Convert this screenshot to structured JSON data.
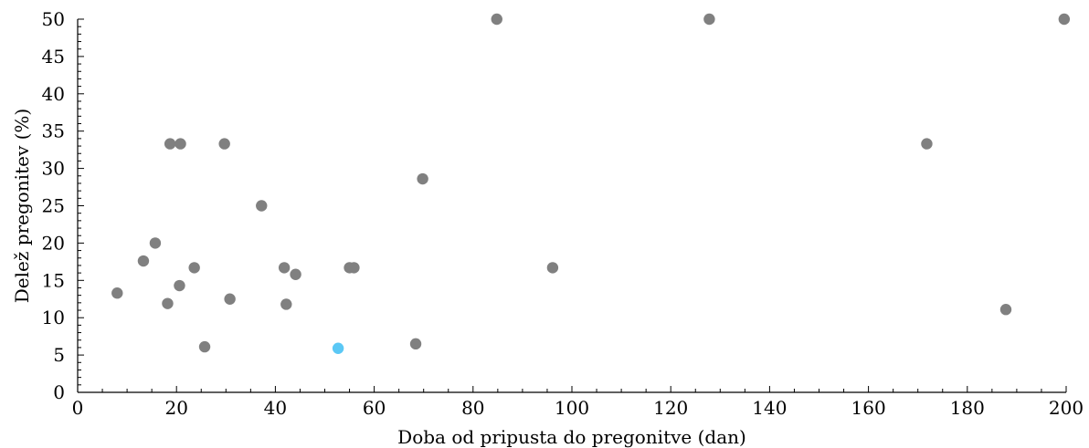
{
  "chart_data": {
    "type": "scatter",
    "xlabel": "Doba od pripusta do pregonitve (dan)",
    "ylabel": "Delež pregonitev (%)",
    "xlim": [
      0,
      200
    ],
    "ylim": [
      0,
      50
    ],
    "x_ticks": [
      0,
      20,
      40,
      60,
      80,
      100,
      120,
      140,
      160,
      180,
      200
    ],
    "y_ticks": [
      0,
      5,
      10,
      15,
      20,
      25,
      30,
      35,
      40,
      45,
      50
    ],
    "x_minor_step": 5,
    "y_minor_step": 1,
    "grid": false,
    "legend": "none",
    "colors": {
      "default_point": "#808080",
      "highlight_point": "#5bc8f5"
    },
    "points": [
      {
        "x": 8,
        "y": 13.3
      },
      {
        "x": 13.3,
        "y": 17.6
      },
      {
        "x": 15.7,
        "y": 20.0
      },
      {
        "x": 18.2,
        "y": 11.9
      },
      {
        "x": 18.7,
        "y": 33.3
      },
      {
        "x": 20.6,
        "y": 14.3
      },
      {
        "x": 20.8,
        "y": 33.3
      },
      {
        "x": 23.6,
        "y": 16.7
      },
      {
        "x": 25.7,
        "y": 6.1
      },
      {
        "x": 29.7,
        "y": 33.3
      },
      {
        "x": 30.8,
        "y": 12.5
      },
      {
        "x": 37.2,
        "y": 25.0
      },
      {
        "x": 41.8,
        "y": 16.7
      },
      {
        "x": 42.2,
        "y": 11.8
      },
      {
        "x": 44.1,
        "y": 15.8
      },
      {
        "x": 52.7,
        "y": 5.9,
        "highlight": true
      },
      {
        "x": 55.0,
        "y": 16.7
      },
      {
        "x": 55.9,
        "y": 16.7
      },
      {
        "x": 68.4,
        "y": 6.5
      },
      {
        "x": 69.8,
        "y": 28.6
      },
      {
        "x": 84.8,
        "y": 50.0
      },
      {
        "x": 96.1,
        "y": 16.7
      },
      {
        "x": 127.8,
        "y": 50.0
      },
      {
        "x": 171.8,
        "y": 33.3
      },
      {
        "x": 187.8,
        "y": 11.1
      },
      {
        "x": 199.6,
        "y": 50.0
      }
    ]
  }
}
